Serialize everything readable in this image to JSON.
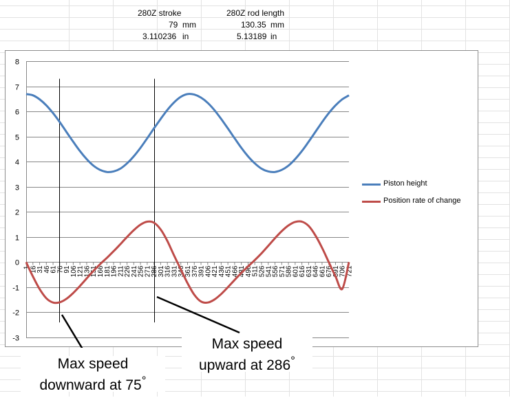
{
  "spreadsheet": {
    "stroke_label": "280Z stroke",
    "rod_label": "280Z rod length",
    "stroke_mm": "79",
    "mm_unit_1": "mm",
    "rod_mm": "130.35",
    "mm_unit_2": "mm",
    "stroke_in": "3.110236",
    "in_unit_1": "in",
    "rod_in": "5.13189",
    "in_unit_2": "in"
  },
  "colors": {
    "piston_height": "#4a7ebb",
    "rate_of_change": "#be4b48",
    "grid": "#868686",
    "marker_line": "#000000"
  },
  "chart_data": {
    "type": "line",
    "title": "",
    "xlabel": "",
    "ylabel": "",
    "ylim": [
      -3,
      8
    ],
    "y_ticks": [
      "8",
      "7",
      "6",
      "5",
      "4",
      "3",
      "2",
      "1",
      "0",
      "-1",
      "-2",
      "-3"
    ],
    "x_tick_labels": [
      "1",
      "16",
      "31",
      "46",
      "61",
      "76",
      "91",
      "106",
      "121",
      "136",
      "151",
      "166",
      "181",
      "196",
      "211",
      "226",
      "241",
      "256",
      "271",
      "286",
      "301",
      "316",
      "331",
      "346",
      "361",
      "376",
      "391",
      "406",
      "421",
      "436",
      "451",
      "466",
      "481",
      "496",
      "511",
      "526",
      "541",
      "556",
      "571",
      "586",
      "601",
      "616",
      "631",
      "646",
      "661",
      "676",
      "691",
      "706",
      "721"
    ],
    "x": [
      1,
      16,
      31,
      46,
      61,
      76,
      91,
      106,
      121,
      136,
      151,
      166,
      181,
      196,
      211,
      226,
      241,
      256,
      271,
      286,
      301,
      316,
      331,
      346,
      361,
      376,
      391,
      406,
      421,
      436,
      451,
      466,
      481,
      496,
      511,
      526,
      541,
      556,
      571,
      586,
      601,
      616,
      631,
      646,
      661,
      676,
      691,
      706,
      721
    ],
    "series": [
      {
        "name": "Piston height",
        "values": [
          6.69,
          6.64,
          6.48,
          6.24,
          5.93,
          5.57,
          5.18,
          4.79,
          4.42,
          4.1,
          3.84,
          3.67,
          3.59,
          3.61,
          3.72,
          3.93,
          4.21,
          4.55,
          4.93,
          5.32,
          5.7,
          6.06,
          6.36,
          6.58,
          6.69,
          6.67,
          6.55,
          6.34,
          6.05,
          5.7,
          5.32,
          4.93,
          4.55,
          4.21,
          3.93,
          3.72,
          3.61,
          3.59,
          3.67,
          3.84,
          4.1,
          4.42,
          4.79,
          5.18,
          5.57,
          5.93,
          6.24,
          6.48,
          6.64
        ]
      },
      {
        "name": "Position rate of change",
        "values": [
          0.0,
          -0.57,
          -1.07,
          -1.44,
          -1.61,
          -1.6,
          -1.46,
          -1.23,
          -0.95,
          -0.65,
          -0.35,
          -0.08,
          0.17,
          0.43,
          0.71,
          1.0,
          1.27,
          1.49,
          1.61,
          1.57,
          1.3,
          0.84,
          0.26,
          -0.29,
          -0.84,
          -1.3,
          -1.57,
          -1.61,
          -1.49,
          -1.27,
          -1.0,
          -0.71,
          -0.43,
          -0.17,
          0.08,
          0.35,
          0.65,
          0.95,
          1.23,
          1.46,
          1.6,
          1.61,
          1.44,
          1.07,
          0.57,
          0.0,
          -0.57,
          -1.07,
          0.0
        ]
      }
    ],
    "legend": "right",
    "grid": true,
    "markers": [
      75,
      286
    ],
    "annotations": [
      {
        "text_line1": "Max speed",
        "text_line2": "downward at 75",
        "degree_symbol": "°"
      },
      {
        "text_line1": "Max speed",
        "text_line2": "upward at 286",
        "degree_symbol": "°"
      }
    ]
  }
}
